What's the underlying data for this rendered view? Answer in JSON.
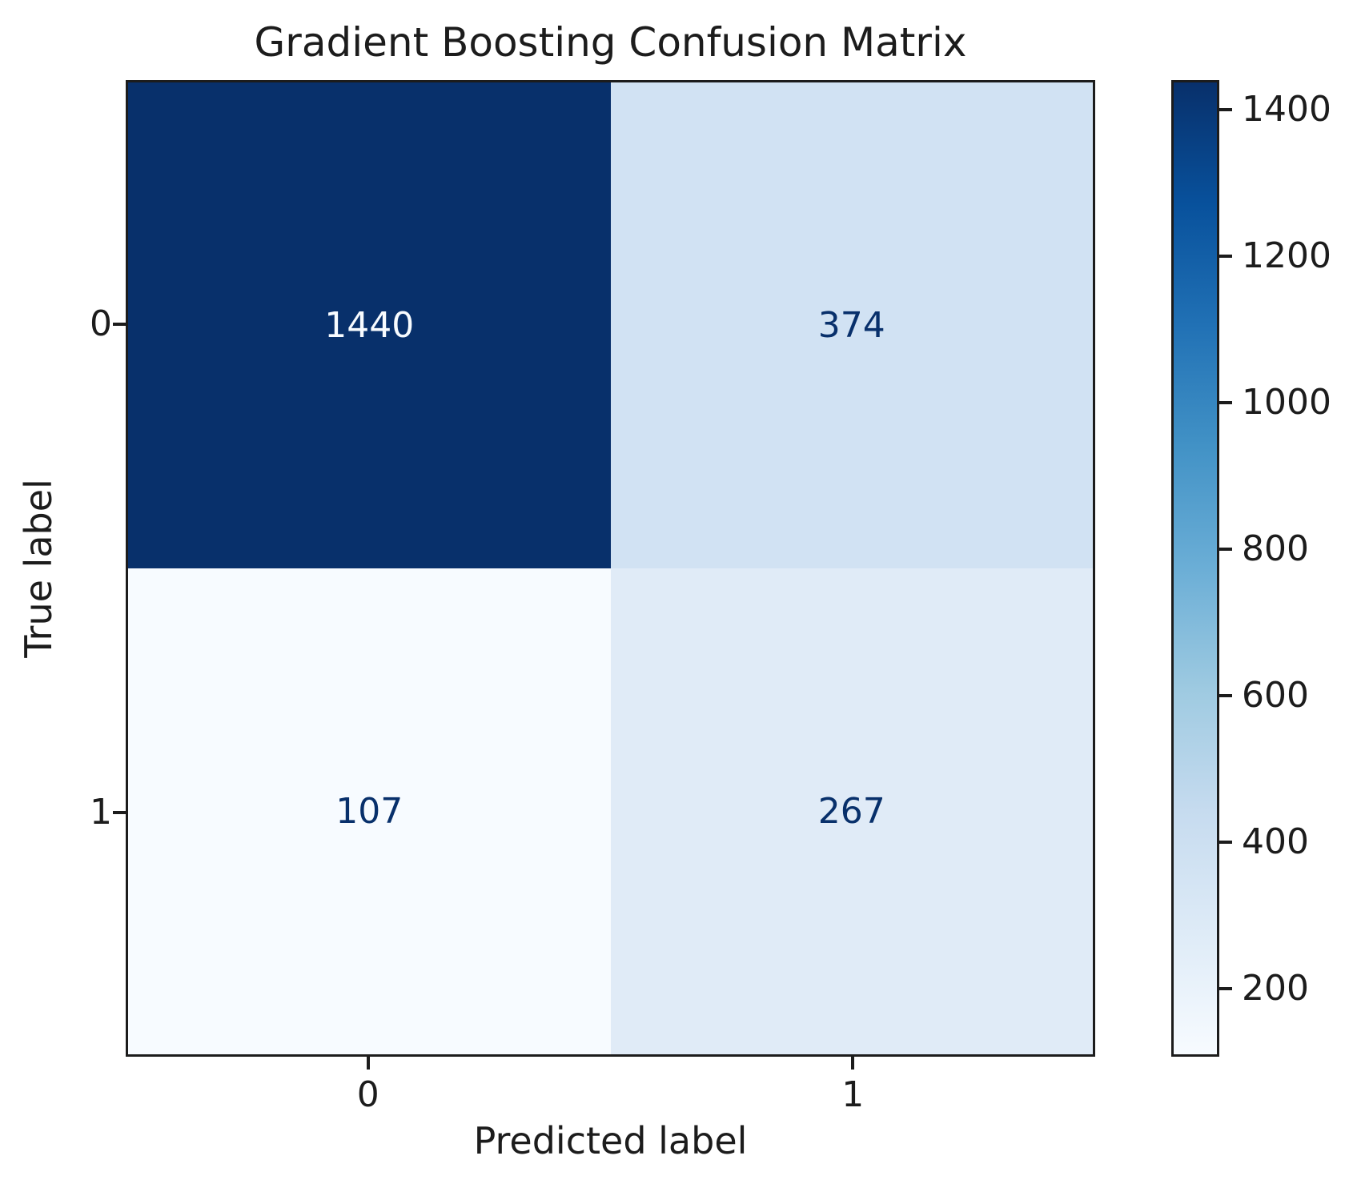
{
  "colors": {
    "background": "#ffffff",
    "spine": "#1c1c1c",
    "text": "#1c1c1c",
    "cell_colors": [
      [
        "#08306b",
        "#d1e2f3"
      ],
      [
        "#f7fbff",
        "#e0ebf7"
      ]
    ],
    "cell_text_colors": [
      [
        "#f7fbff",
        "#08306b"
      ],
      [
        "#08306b",
        "#08306b"
      ]
    ],
    "colorbar_gradient": [
      "#08306b",
      "#08519c",
      "#2171b5",
      "#4292c6",
      "#6baed6",
      "#9ecae1",
      "#c6dbef",
      "#deebf7",
      "#f7fbff"
    ]
  },
  "chart_data": {
    "type": "heatmap",
    "title": "Gradient Boosting Confusion Matrix",
    "xlabel": "Predicted label",
    "ylabel": "True label",
    "x_tick_labels": [
      "0",
      "1"
    ],
    "y_tick_labels": [
      "0",
      "1"
    ],
    "matrix": [
      [
        1440,
        374
      ],
      [
        107,
        267
      ]
    ],
    "colormap": "Blues",
    "value_range": [
      107,
      1440
    ],
    "colorbar_ticks": [
      200,
      400,
      600,
      800,
      1000,
      1200,
      1400
    ],
    "legend_position": "right-colorbar",
    "grid": false
  }
}
